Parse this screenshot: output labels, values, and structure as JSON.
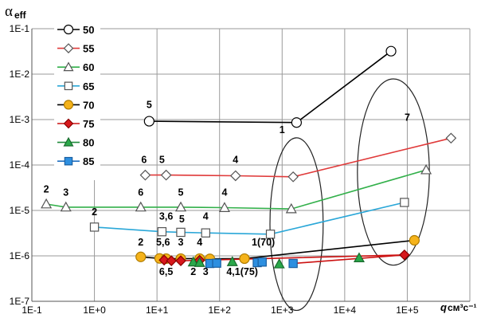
{
  "chart_data": {
    "type": "scatter",
    "x_scale": "log",
    "y_scale": "log",
    "xlim": [
      0.1,
      1000000
    ],
    "ylim": [
      1e-07,
      0.1
    ],
    "grid": true,
    "legend_position": "top-left",
    "ylabel_main": "α",
    "ylabel_sub": "eff",
    "xlabel_main": "q",
    "xlabel_unit": "см³с⁻¹",
    "x_ticks": [
      "1E-1",
      "1E+0",
      "1E+1",
      "1E+2",
      "1E+3",
      "1E+4",
      "1E+5"
    ],
    "y_ticks": [
      "1E-7",
      "1E-6",
      "1E-5",
      "1E-4",
      "1E-3",
      "1E-2",
      "1E-1"
    ],
    "series": [
      {
        "name": "50",
        "marker": "circle",
        "line_color": "#000000",
        "marker_fill": "#ffffff",
        "marker_stroke": "#000000",
        "x": [
          7.5,
          1700,
          55000
        ],
        "y": [
          0.00092,
          0.00086,
          0.032
        ]
      },
      {
        "name": "55",
        "marker": "diamond",
        "line_color": "#e03a3a",
        "marker_fill": "#ffffff",
        "marker_stroke": "#555555",
        "x": [
          6.5,
          14,
          180,
          1500,
          500000
        ],
        "y": [
          6e-05,
          6e-05,
          5.8e-05,
          5.5e-05,
          0.00039
        ]
      },
      {
        "name": "60",
        "marker": "triangle",
        "line_color": "#32b04a",
        "marker_fill": "#ffffff",
        "marker_stroke": "#555555",
        "x": [
          0.17,
          0.35,
          5.5,
          24,
          120,
          1400,
          200000
        ],
        "y": [
          1.38e-05,
          1.18e-05,
          1.18e-05,
          1.18e-05,
          1.15e-05,
          1.08e-05,
          7.8e-05
        ]
      },
      {
        "name": "65",
        "marker": "square",
        "line_color": "#2aa7d8",
        "marker_fill": "#ffffff",
        "marker_stroke": "#555555",
        "x": [
          1,
          12,
          24,
          60,
          650,
          90000
        ],
        "y": [
          4.3e-06,
          3.4e-06,
          3.3e-06,
          3.2e-06,
          3e-06,
          1.5e-05
        ]
      },
      {
        "name": "70",
        "marker": "circle",
        "line_color": "#000000",
        "marker_fill": "#f5b31b",
        "marker_stroke": "#b07c00",
        "x": [
          5.5,
          11,
          14,
          24,
          48,
          70,
          250,
          130000
        ],
        "y": [
          9.5e-07,
          8.8e-07,
          8.7e-07,
          8.7e-07,
          8.7e-07,
          8.6e-07,
          8.7e-07,
          2.2e-06
        ]
      },
      {
        "name": "75",
        "marker": "diamond",
        "line_color": "#cc1111",
        "marker_fill": "#d7181c",
        "marker_stroke": "#8b0000",
        "x": [
          13,
          17,
          24,
          48,
          90000
        ],
        "y": [
          8.1e-07,
          7.8e-07,
          7.8e-07,
          8e-07,
          1.05e-06
        ]
      },
      {
        "name": "80",
        "marker": "triangle",
        "line_color": "#1f8a3a",
        "marker_fill": "#2aa84a",
        "marker_stroke": "#1a6b2e",
        "line": false,
        "x": [
          38,
          48,
          160,
          900,
          17000
        ],
        "y": [
          7.3e-07,
          7.1e-07,
          7.4e-07,
          6.6e-07,
          9e-07
        ]
      },
      {
        "name": "85",
        "marker": "square",
        "line_color": "#1f6fc0",
        "marker_fill": "#2d8fe0",
        "marker_stroke": "#1a5fa0",
        "line": false,
        "x": [
          70,
          90,
          400,
          480,
          1500
        ],
        "y": [
          6.8e-07,
          6.9e-07,
          7.1e-07,
          7.3e-07,
          6.8e-07
        ]
      }
    ],
    "connectors": [
      {
        "x": [
          1500,
          90000
        ],
        "y": [
          6.8e-07,
          1.05e-06
        ],
        "color": "#cc1111"
      }
    ],
    "ellipses": [
      {
        "cx": 1700,
        "cy": 5e-06,
        "rx_decades": 0.85,
        "ry_decades": 3.8
      },
      {
        "cx": 60000,
        "cy": 7e-05,
        "rx_decades": 1.15,
        "ry_decades": 4.1
      }
    ],
    "annotations": [
      {
        "text": "5",
        "x": 7.5,
        "y": 0.0018
      },
      {
        "text": "1",
        "x": 1000,
        "y": 0.0005
      },
      {
        "text": "7",
        "x": 100000,
        "y": 0.00095
      },
      {
        "text": "6",
        "x": 6.2,
        "y": 0.00011
      },
      {
        "text": "5",
        "x": 12,
        "y": 0.00011
      },
      {
        "text": "4",
        "x": 180,
        "y": 0.00011
      },
      {
        "text": "2",
        "x": 0.17,
        "y": 2.5e-05
      },
      {
        "text": "3",
        "x": 0.35,
        "y": 2.1e-05
      },
      {
        "text": "6",
        "x": 5.5,
        "y": 2.1e-05
      },
      {
        "text": "5",
        "x": 24,
        "y": 2.1e-05
      },
      {
        "text": "4",
        "x": 120,
        "y": 2.1e-05
      },
      {
        "text": "2",
        "x": 1,
        "y": 7.9e-06
      },
      {
        "text": "3,6",
        "x": 14,
        "y": 6.3e-06
      },
      {
        "text": "5",
        "x": 25,
        "y": 5.5e-06
      },
      {
        "text": "4",
        "x": 60,
        "y": 6.3e-06
      },
      {
        "text": "1(70)",
        "x": 500,
        "y": 1.7e-06
      },
      {
        "text": "2",
        "x": 5.5,
        "y": 1.7e-06
      },
      {
        "text": "5,6",
        "x": 12.5,
        "y": 1.7e-06
      },
      {
        "text": "3",
        "x": 24,
        "y": 1.7e-06
      },
      {
        "text": "4",
        "x": 48,
        "y": 1.7e-06
      },
      {
        "text": "6,5",
        "x": 14,
        "y": 3.8e-07
      },
      {
        "text": "2",
        "x": 38,
        "y": 3.8e-07
      },
      {
        "text": "3",
        "x": 60,
        "y": 3.8e-07
      },
      {
        "text": "4,1(75)",
        "x": 230,
        "y": 3.8e-07
      }
    ]
  }
}
